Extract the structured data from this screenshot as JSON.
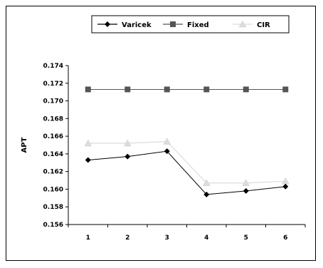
{
  "chart_data": {
    "type": "line",
    "title": "",
    "xlabel": "",
    "ylabel": "APT",
    "categories": [
      "1",
      "2",
      "3",
      "4",
      "5",
      "6"
    ],
    "ylim": [
      0.156,
      0.174
    ],
    "yticks": [
      "0.174",
      "0.172",
      "0.170",
      "0.168",
      "0.166",
      "0.164",
      "0.162",
      "0.160",
      "0.158",
      "0.156"
    ],
    "grid": false,
    "legend_position": "top",
    "series": [
      {
        "name": "Varicek",
        "values": [
          0.1633,
          0.1637,
          0.1643,
          0.1594,
          0.1598,
          0.1603
        ],
        "color": "#000000",
        "marker": "diamond"
      },
      {
        "name": "Fixed",
        "values": [
          0.1713,
          0.1713,
          0.1713,
          0.1713,
          0.1713,
          0.1713
        ],
        "color": "#555555",
        "marker": "square"
      },
      {
        "name": "CIR",
        "values": [
          0.1652,
          0.1652,
          0.1654,
          0.1607,
          0.1607,
          0.1609
        ],
        "color": "#dcdcdc",
        "marker": "triangle"
      }
    ]
  }
}
